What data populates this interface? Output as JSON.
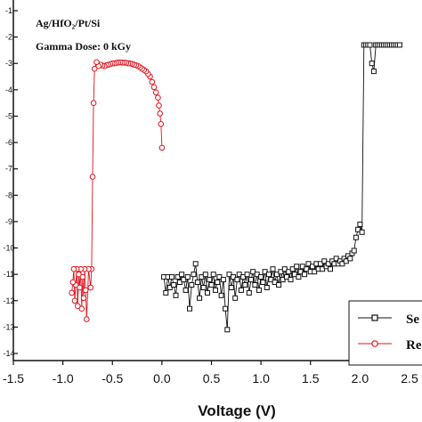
{
  "chart_data": {
    "type": "scatter",
    "xlabel": "Voltage (V)",
    "ylabel": "",
    "xlim": [
      -1.5,
      2.5
    ],
    "ylim": [
      -14,
      -1
    ],
    "x_ticks": [
      "-1.5",
      "-1.0",
      "-0.5",
      "0.0",
      "0.5",
      "1.0",
      "1.5",
      "2.0",
      "2.5"
    ],
    "y_ticks": [
      "-1",
      "-2",
      "-3",
      "-4",
      "-5",
      "-6",
      "-7",
      "-8",
      "-9",
      "-10",
      "-11",
      "-12",
      "-13",
      "-14"
    ],
    "annotations": [
      {
        "text": "Ag/HfO₂/Pt/Si"
      },
      {
        "text": "Gamma Dose: 0 kGy"
      }
    ],
    "legend": {
      "placement": "bottom-right",
      "entries": [
        "Se",
        "Re"
      ]
    },
    "series": [
      {
        "name": "Set",
        "color": "#111111",
        "marker": "square",
        "points": [
          [
            0.02,
            -11.1
          ],
          [
            0.04,
            -11.7
          ],
          [
            0.06,
            -11.1
          ],
          [
            0.08,
            -11.5
          ],
          [
            0.1,
            -11.1
          ],
          [
            0.12,
            -11.4
          ],
          [
            0.14,
            -11.8
          ],
          [
            0.16,
            -11.1
          ],
          [
            0.18,
            -11.3
          ],
          [
            0.2,
            -11.0
          ],
          [
            0.22,
            -11.2
          ],
          [
            0.24,
            -11.6
          ],
          [
            0.26,
            -11.1
          ],
          [
            0.28,
            -12.3
          ],
          [
            0.3,
            -11.4
          ],
          [
            0.32,
            -11.0
          ],
          [
            0.34,
            -10.6
          ],
          [
            0.36,
            -11.3
          ],
          [
            0.38,
            -11.9
          ],
          [
            0.4,
            -11.1
          ],
          [
            0.42,
            -11.5
          ],
          [
            0.44,
            -11.0
          ],
          [
            0.46,
            -11.7
          ],
          [
            0.48,
            -11.2
          ],
          [
            0.5,
            -11.4
          ],
          [
            0.52,
            -11.0
          ],
          [
            0.54,
            -11.6
          ],
          [
            0.56,
            -11.3
          ],
          [
            0.58,
            -11.1
          ],
          [
            0.6,
            -11.8
          ],
          [
            0.62,
            -11.2
          ],
          [
            0.64,
            -12.3
          ],
          [
            0.66,
            -13.1
          ],
          [
            0.68,
            -11.0
          ],
          [
            0.7,
            -11.5
          ],
          [
            0.72,
            -11.1
          ],
          [
            0.74,
            -11.9
          ],
          [
            0.76,
            -11.2
          ],
          [
            0.78,
            -11.0
          ],
          [
            0.8,
            -11.6
          ],
          [
            0.82,
            -11.1
          ],
          [
            0.84,
            -11.4
          ],
          [
            0.86,
            -11.0
          ],
          [
            0.88,
            -11.7
          ],
          [
            0.9,
            -11.2
          ],
          [
            0.92,
            -10.9
          ],
          [
            0.94,
            -11.4
          ],
          [
            0.96,
            -11.0
          ],
          [
            0.98,
            -11.6
          ],
          [
            1.0,
            -11.1
          ],
          [
            1.02,
            -11.3
          ],
          [
            1.04,
            -10.9
          ],
          [
            1.06,
            -11.5
          ],
          [
            1.08,
            -11.0
          ],
          [
            1.1,
            -11.2
          ],
          [
            1.12,
            -10.8
          ],
          [
            1.14,
            -11.3
          ],
          [
            1.16,
            -11.0
          ],
          [
            1.18,
            -11.4
          ],
          [
            1.2,
            -10.9
          ],
          [
            1.22,
            -11.2
          ],
          [
            1.24,
            -10.8
          ],
          [
            1.26,
            -11.1
          ],
          [
            1.28,
            -10.9
          ],
          [
            1.3,
            -11.2
          ],
          [
            1.32,
            -10.8
          ],
          [
            1.34,
            -11.0
          ],
          [
            1.36,
            -10.7
          ],
          [
            1.38,
            -11.1
          ],
          [
            1.4,
            -10.9
          ],
          [
            1.42,
            -10.7
          ],
          [
            1.44,
            -11.0
          ],
          [
            1.46,
            -10.8
          ],
          [
            1.48,
            -10.6
          ],
          [
            1.5,
            -10.9
          ],
          [
            1.52,
            -10.7
          ],
          [
            1.54,
            -10.9
          ],
          [
            1.56,
            -10.6
          ],
          [
            1.58,
            -10.8
          ],
          [
            1.6,
            -10.6
          ],
          [
            1.62,
            -10.8
          ],
          [
            1.64,
            -10.5
          ],
          [
            1.66,
            -10.7
          ],
          [
            1.68,
            -10.6
          ],
          [
            1.7,
            -10.8
          ],
          [
            1.72,
            -10.5
          ],
          [
            1.74,
            -10.6
          ],
          [
            1.76,
            -10.4
          ],
          [
            1.78,
            -10.6
          ],
          [
            1.8,
            -10.5
          ],
          [
            1.82,
            -10.6
          ],
          [
            1.84,
            -10.4
          ],
          [
            1.86,
            -10.5
          ],
          [
            1.88,
            -10.3
          ],
          [
            1.9,
            -10.4
          ],
          [
            1.92,
            -10.2
          ],
          [
            1.94,
            -10.1
          ],
          [
            1.96,
            -9.6
          ],
          [
            1.98,
            -9.3
          ],
          [
            2.0,
            -9.1
          ],
          [
            2.02,
            -9.4
          ],
          [
            2.04,
            -2.3
          ],
          [
            2.06,
            -2.3
          ],
          [
            2.08,
            -2.3
          ],
          [
            2.1,
            -2.3
          ],
          [
            2.12,
            -3.0
          ],
          [
            2.14,
            -3.3
          ],
          [
            2.16,
            -2.3
          ],
          [
            2.18,
            -2.3
          ],
          [
            2.2,
            -2.3
          ],
          [
            2.22,
            -2.3
          ],
          [
            2.24,
            -2.3
          ],
          [
            2.26,
            -2.3
          ],
          [
            2.28,
            -2.3
          ],
          [
            2.3,
            -2.3
          ],
          [
            2.32,
            -2.3
          ],
          [
            2.34,
            -2.3
          ],
          [
            2.36,
            -2.3
          ],
          [
            2.38,
            -2.3
          ],
          [
            2.4,
            -2.3
          ]
        ]
      },
      {
        "name": "Reset",
        "color": "#e0141e",
        "marker": "circle",
        "points": [
          [
            0.0,
            -6.2
          ],
          [
            -0.01,
            -5.3
          ],
          [
            -0.02,
            -4.9
          ],
          [
            -0.03,
            -4.6
          ],
          [
            -0.04,
            -4.3
          ],
          [
            -0.06,
            -4.1
          ],
          [
            -0.08,
            -3.9
          ],
          [
            -0.1,
            -3.7
          ],
          [
            -0.12,
            -3.5
          ],
          [
            -0.14,
            -3.4
          ],
          [
            -0.16,
            -3.3
          ],
          [
            -0.18,
            -3.25
          ],
          [
            -0.2,
            -3.2
          ],
          [
            -0.22,
            -3.15
          ],
          [
            -0.24,
            -3.1
          ],
          [
            -0.26,
            -3.07
          ],
          [
            -0.28,
            -3.05
          ],
          [
            -0.3,
            -3.02
          ],
          [
            -0.32,
            -3.0
          ],
          [
            -0.34,
            -3.0
          ],
          [
            -0.36,
            -2.98
          ],
          [
            -0.38,
            -2.97
          ],
          [
            -0.4,
            -2.97
          ],
          [
            -0.42,
            -2.96
          ],
          [
            -0.44,
            -2.97
          ],
          [
            -0.46,
            -2.98
          ],
          [
            -0.48,
            -3.0
          ],
          [
            -0.5,
            -3.0
          ],
          [
            -0.52,
            -3.02
          ],
          [
            -0.54,
            -3.05
          ],
          [
            -0.56,
            -3.07
          ],
          [
            -0.58,
            -3.1
          ],
          [
            -0.6,
            -3.08
          ],
          [
            -0.62,
            -3.05
          ],
          [
            -0.64,
            -3.1
          ],
          [
            -0.66,
            -2.95
          ],
          [
            -0.68,
            -3.2
          ],
          [
            -0.69,
            -4.5
          ],
          [
            -0.7,
            -7.3
          ],
          [
            -0.71,
            -10.8
          ],
          [
            -0.72,
            -11.5
          ],
          [
            -0.74,
            -10.8
          ],
          [
            -0.76,
            -12.7
          ],
          [
            -0.77,
            -11.6
          ],
          [
            -0.78,
            -10.8
          ],
          [
            -0.79,
            -11.9
          ],
          [
            -0.8,
            -11.1
          ],
          [
            -0.81,
            -12.3
          ],
          [
            -0.82,
            -10.8
          ],
          [
            -0.83,
            -11.5
          ],
          [
            -0.84,
            -11.0
          ],
          [
            -0.85,
            -12.2
          ],
          [
            -0.86,
            -10.8
          ],
          [
            -0.87,
            -11.4
          ],
          [
            -0.88,
            -12.0
          ],
          [
            -0.89,
            -10.8
          ],
          [
            -0.9,
            -11.3
          ],
          [
            -0.91,
            -11.7
          ]
        ]
      }
    ]
  }
}
